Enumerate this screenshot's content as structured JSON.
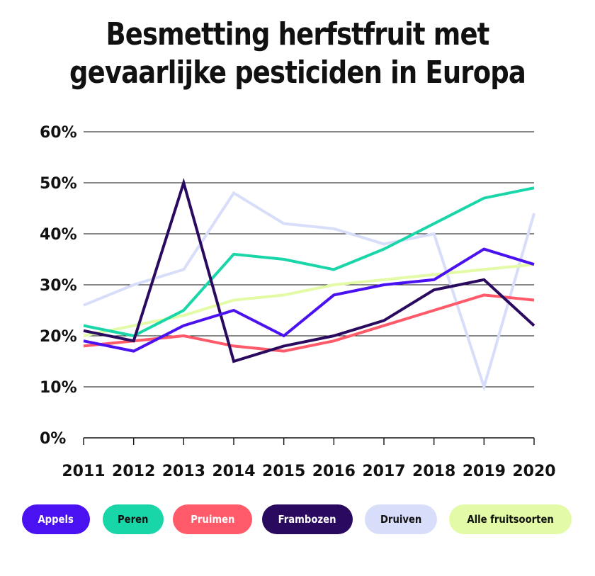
{
  "title_lines": [
    "Besmetting herfstfruit met",
    "gevaarlijke pesticiden in Europa"
  ],
  "chart_data": {
    "type": "line",
    "title": "Besmetting herfstfruit met gevaarlijke pesticiden in Europa",
    "xlabel": "",
    "ylabel": "",
    "ylim": [
      0,
      60
    ],
    "y_ticks": [
      0,
      10,
      20,
      30,
      40,
      50,
      60
    ],
    "y_tick_labels": [
      "0%",
      "10%",
      "20%",
      "30%",
      "40%",
      "50%",
      "60%"
    ],
    "grid": true,
    "legend_position": "bottom",
    "x": [
      "2011",
      "2012",
      "2013",
      "2014",
      "2015",
      "2016",
      "2017",
      "2018",
      "2019",
      "2020"
    ],
    "series": [
      {
        "name": "Appels",
        "color": "#4a12f0",
        "text_color": "#ffffff",
        "values": [
          19,
          17,
          22,
          25,
          20,
          28,
          30,
          31,
          37,
          34
        ]
      },
      {
        "name": "Peren",
        "color": "#19d6a8",
        "text_color": "#111111",
        "values": [
          22,
          20,
          25,
          36,
          35,
          33,
          37,
          42,
          47,
          49
        ]
      },
      {
        "name": "Pruimen",
        "color": "#ff5a6a",
        "text_color": "#ffffff",
        "values": [
          18,
          19,
          20,
          18,
          17,
          19,
          22,
          25,
          28,
          27
        ]
      },
      {
        "name": "Frambozen",
        "color": "#2a0a5e",
        "text_color": "#ffffff",
        "values": [
          21,
          19,
          50,
          15,
          18,
          20,
          23,
          29,
          31,
          22
        ]
      },
      {
        "name": "Druiven",
        "color": "#d8defa",
        "text_color": "#111111",
        "values": [
          26,
          30,
          33,
          48,
          42,
          41,
          38,
          40,
          10,
          44
        ]
      },
      {
        "name": "Alle fruitsoorten",
        "color": "#e3fba6",
        "text_color": "#111111",
        "values": [
          20,
          22,
          24,
          27,
          28,
          30,
          31,
          32,
          33,
          34
        ]
      }
    ]
  }
}
